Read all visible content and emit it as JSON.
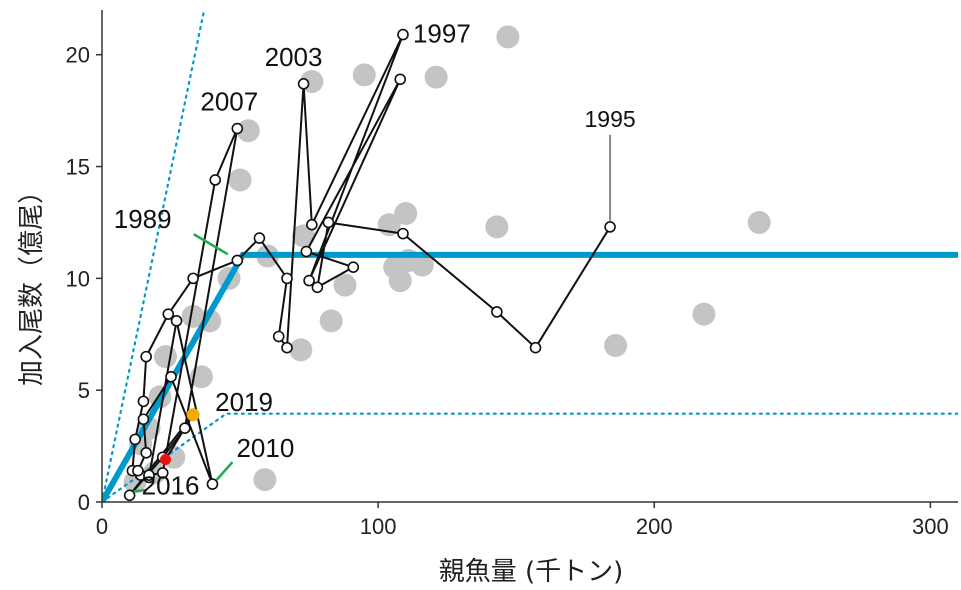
{
  "chart_data": {
    "type": "scatter",
    "xlabel": "親魚量 (千トン)",
    "ylabel": "加入尾数（億尾）",
    "xlim": [
      0,
      310
    ],
    "ylim": [
      0,
      22
    ],
    "x_ticks": [
      0,
      100,
      200,
      300
    ],
    "y_ticks": [
      0,
      5,
      10,
      15,
      20
    ],
    "grid": false,
    "colors": {
      "background_points": "#c4c4c4",
      "trajectory": "#111111",
      "hockey_stick": "#0099cc",
      "callout_lines": "#22aa55",
      "year_2019": "#f5a800",
      "recent_point": "#ee1111"
    },
    "series": [
      {
        "style": "grey-dots",
        "points": [
          [
            147,
            20.8
          ],
          [
            95,
            19.1
          ],
          [
            121,
            19.0
          ],
          [
            76,
            18.8
          ],
          [
            53,
            16.6
          ],
          [
            50,
            14.4
          ],
          [
            238,
            12.5
          ],
          [
            104,
            12.4
          ],
          [
            110,
            12.9
          ],
          [
            143,
            12.3
          ],
          [
            73,
            11.9
          ],
          [
            60,
            11.0
          ],
          [
            106,
            10.5
          ],
          [
            111,
            10.8
          ],
          [
            116,
            10.6
          ],
          [
            108,
            9.9
          ],
          [
            88,
            9.7
          ],
          [
            46,
            10.0
          ],
          [
            39,
            8.1
          ],
          [
            33,
            8.3
          ],
          [
            83,
            8.1
          ],
          [
            218,
            8.4
          ],
          [
            72,
            6.8
          ],
          [
            186,
            7.0
          ],
          [
            23,
            6.5
          ],
          [
            36,
            5.6
          ],
          [
            21,
            4.7
          ],
          [
            17,
            3.3
          ],
          [
            14,
            2.6
          ],
          [
            26,
            2.0
          ],
          [
            59,
            1.0
          ],
          [
            19,
            1.3
          ],
          [
            12,
            0.9
          ]
        ]
      },
      {
        "style": "trajectory",
        "points": [
          [
            184,
            12.3
          ],
          [
            157,
            6.9
          ],
          [
            143,
            8.5
          ],
          [
            109,
            12.0
          ],
          [
            82,
            12.5
          ],
          [
            78,
            9.6
          ],
          [
            91,
            10.5
          ],
          [
            74,
            11.2
          ],
          [
            108,
            18.9
          ],
          [
            75,
            9.9
          ],
          [
            109,
            20.9
          ],
          [
            76,
            12.4
          ],
          [
            73,
            18.7
          ],
          [
            67,
            6.9
          ],
          [
            64,
            7.4
          ],
          [
            67,
            10.0
          ],
          [
            57,
            11.8
          ],
          [
            49,
            10.8
          ],
          [
            33,
            10.0
          ],
          [
            24,
            8.4
          ],
          [
            16,
            6.5
          ],
          [
            15,
            4.5
          ],
          [
            12,
            2.8
          ],
          [
            11,
            1.4
          ],
          [
            14,
            1.2
          ],
          [
            17,
            1.1
          ],
          [
            27,
            8.1
          ],
          [
            40,
            0.8
          ],
          [
            25,
            5.6
          ],
          [
            15,
            3.7
          ],
          [
            16,
            2.2
          ],
          [
            13,
            1.4
          ],
          [
            17,
            1.2
          ],
          [
            22,
            1.3
          ],
          [
            41,
            14.4
          ],
          [
            49,
            16.7
          ],
          [
            30,
            3.3
          ],
          [
            22,
            2.0
          ],
          [
            10,
            0.3
          ]
        ]
      },
      {
        "name": "2019",
        "style": "highlight",
        "points": [
          [
            33,
            3.9
          ]
        ]
      },
      {
        "style": "recent",
        "points": [
          [
            23,
            1.9
          ]
        ]
      }
    ],
    "hockey_stick": {
      "main": [
        [
          0,
          0
        ],
        [
          51,
          11.05
        ],
        [
          310,
          11.05
        ]
      ],
      "lower": [
        [
          0,
          0
        ],
        [
          45,
          3.95
        ],
        [
          310,
          3.95
        ]
      ],
      "upper": [
        [
          0,
          0
        ],
        [
          37,
          22
        ]
      ]
    },
    "annotations": [
      {
        "text": "1997",
        "x": 109,
        "y": 20.9
      },
      {
        "text": "2003",
        "x": 73,
        "y": 18.7
      },
      {
        "text": "2007",
        "x": 49,
        "y": 16.7
      },
      {
        "text": "1995",
        "x": 184,
        "y": 12.3
      },
      {
        "text": "1989",
        "x": 47,
        "y": 10.9
      },
      {
        "text": "2019",
        "x": 33,
        "y": 3.9
      },
      {
        "text": "2010",
        "x": 40,
        "y": 0.8
      },
      {
        "text": "2016",
        "x": 10,
        "y": 0.3
      }
    ]
  }
}
